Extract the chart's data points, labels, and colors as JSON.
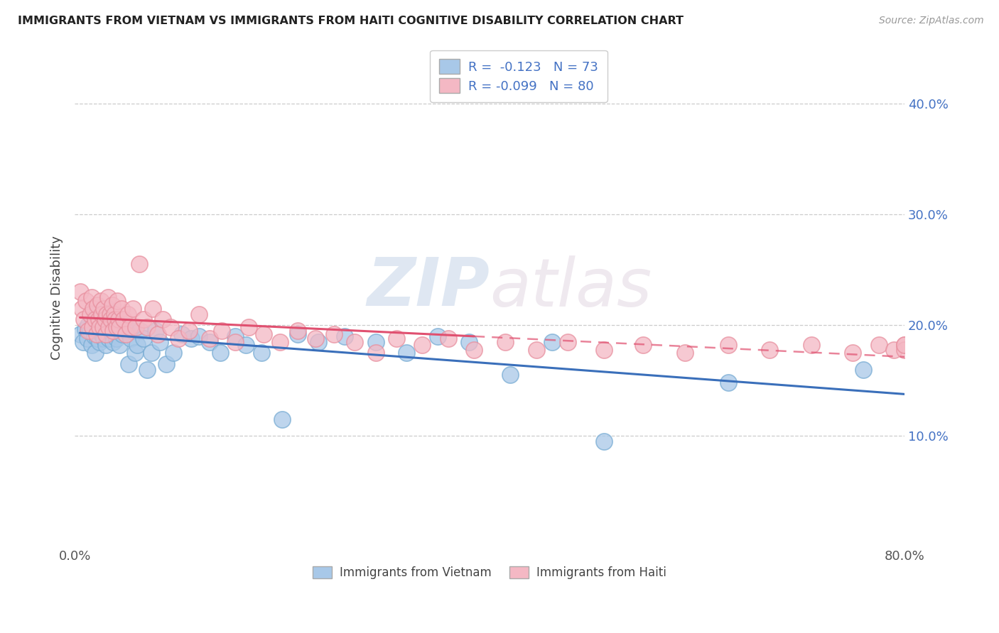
{
  "title": "IMMIGRANTS FROM VIETNAM VS IMMIGRANTS FROM HAITI COGNITIVE DISABILITY CORRELATION CHART",
  "source": "Source: ZipAtlas.com",
  "ylabel": "Cognitive Disability",
  "xlim": [
    0.0,
    0.8
  ],
  "ylim": [
    0.0,
    0.45
  ],
  "vietnam_color": "#a8c8e8",
  "vietnam_edge_color": "#7aadd4",
  "haiti_color": "#f4b8c4",
  "haiti_edge_color": "#e8909f",
  "vietnam_line_color": "#3a6fba",
  "haiti_line_color": "#e05070",
  "vietnam_R": -0.123,
  "vietnam_N": 73,
  "haiti_R": -0.099,
  "haiti_N": 80,
  "watermark_zip": "ZIP",
  "watermark_atlas": "atlas",
  "vietnam_scatter_x": [
    0.005,
    0.008,
    0.01,
    0.012,
    0.013,
    0.015,
    0.016,
    0.017,
    0.018,
    0.019,
    0.02,
    0.021,
    0.022,
    0.022,
    0.023,
    0.024,
    0.025,
    0.026,
    0.027,
    0.028,
    0.029,
    0.03,
    0.031,
    0.032,
    0.033,
    0.034,
    0.035,
    0.036,
    0.037,
    0.038,
    0.039,
    0.04,
    0.041,
    0.042,
    0.043,
    0.044,
    0.046,
    0.048,
    0.05,
    0.052,
    0.054,
    0.056,
    0.058,
    0.06,
    0.063,
    0.066,
    0.07,
    0.074,
    0.078,
    0.082,
    0.088,
    0.095,
    0.103,
    0.112,
    0.12,
    0.13,
    0.14,
    0.155,
    0.165,
    0.18,
    0.2,
    0.215,
    0.235,
    0.26,
    0.29,
    0.32,
    0.35,
    0.38,
    0.42,
    0.46,
    0.51,
    0.63,
    0.76
  ],
  "vietnam_scatter_y": [
    0.192,
    0.185,
    0.196,
    0.188,
    0.2,
    0.195,
    0.182,
    0.198,
    0.205,
    0.19,
    0.175,
    0.21,
    0.188,
    0.195,
    0.202,
    0.185,
    0.195,
    0.192,
    0.205,
    0.188,
    0.195,
    0.182,
    0.198,
    0.215,
    0.188,
    0.195,
    0.205,
    0.192,
    0.185,
    0.2,
    0.195,
    0.188,
    0.205,
    0.195,
    0.182,
    0.198,
    0.192,
    0.2,
    0.195,
    0.165,
    0.188,
    0.195,
    0.175,
    0.182,
    0.195,
    0.188,
    0.16,
    0.175,
    0.195,
    0.185,
    0.165,
    0.175,
    0.192,
    0.188,
    0.19,
    0.185,
    0.175,
    0.19,
    0.182,
    0.175,
    0.115,
    0.192,
    0.185,
    0.19,
    0.185,
    0.175,
    0.19,
    0.185,
    0.155,
    0.185,
    0.095,
    0.148,
    0.16
  ],
  "haiti_scatter_x": [
    0.005,
    0.007,
    0.009,
    0.011,
    0.013,
    0.015,
    0.016,
    0.017,
    0.018,
    0.02,
    0.021,
    0.022,
    0.023,
    0.024,
    0.025,
    0.026,
    0.027,
    0.028,
    0.029,
    0.03,
    0.031,
    0.032,
    0.033,
    0.034,
    0.035,
    0.036,
    0.037,
    0.038,
    0.039,
    0.04,
    0.041,
    0.042,
    0.043,
    0.045,
    0.047,
    0.049,
    0.051,
    0.053,
    0.056,
    0.059,
    0.062,
    0.066,
    0.07,
    0.075,
    0.08,
    0.085,
    0.092,
    0.1,
    0.11,
    0.12,
    0.13,
    0.142,
    0.155,
    0.168,
    0.182,
    0.198,
    0.215,
    0.232,
    0.25,
    0.27,
    0.29,
    0.31,
    0.335,
    0.36,
    0.385,
    0.415,
    0.445,
    0.475,
    0.51,
    0.548,
    0.588,
    0.63,
    0.67,
    0.71,
    0.75,
    0.775,
    0.79,
    0.8,
    0.8,
    0.8
  ],
  "haiti_scatter_y": [
    0.23,
    0.215,
    0.205,
    0.222,
    0.195,
    0.21,
    0.225,
    0.198,
    0.215,
    0.205,
    0.192,
    0.218,
    0.205,
    0.198,
    0.222,
    0.21,
    0.198,
    0.215,
    0.205,
    0.192,
    0.21,
    0.225,
    0.198,
    0.21,
    0.205,
    0.218,
    0.195,
    0.21,
    0.205,
    0.198,
    0.222,
    0.205,
    0.198,
    0.215,
    0.205,
    0.192,
    0.21,
    0.198,
    0.215,
    0.198,
    0.255,
    0.205,
    0.198,
    0.215,
    0.192,
    0.205,
    0.198,
    0.188,
    0.195,
    0.21,
    0.188,
    0.195,
    0.185,
    0.198,
    0.192,
    0.185,
    0.195,
    0.188,
    0.192,
    0.185,
    0.175,
    0.188,
    0.182,
    0.188,
    0.178,
    0.185,
    0.178,
    0.185,
    0.178,
    0.182,
    0.175,
    0.182,
    0.178,
    0.182,
    0.175,
    0.182,
    0.178,
    0.182,
    0.178,
    0.182
  ]
}
